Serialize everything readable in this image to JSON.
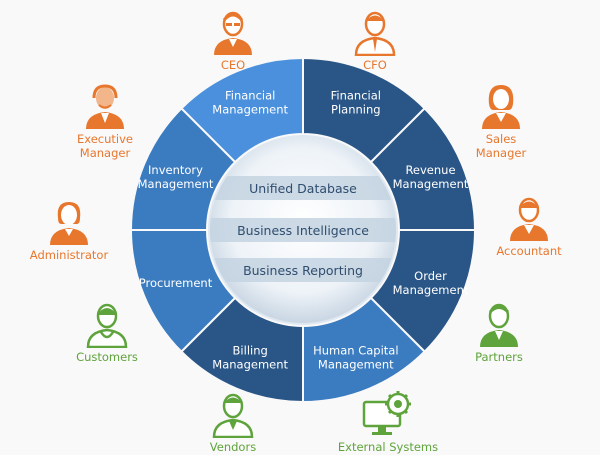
{
  "diagram": {
    "segments": [
      {
        "id": "financial-management",
        "lines": [
          "Financial",
          "Management"
        ]
      },
      {
        "id": "financial-planning",
        "lines": [
          "Financial",
          "Planning"
        ]
      },
      {
        "id": "revenue-management",
        "lines": [
          "Revenue",
          "Management"
        ]
      },
      {
        "id": "order-management",
        "lines": [
          "Order",
          "Management"
        ]
      },
      {
        "id": "human-capital-management",
        "lines": [
          "Human Capital",
          "Management"
        ]
      },
      {
        "id": "billing-management",
        "lines": [
          "Billing",
          "Management"
        ]
      },
      {
        "id": "procurement",
        "lines": [
          "Procurement"
        ]
      },
      {
        "id": "inventory-management",
        "lines": [
          "Inventory",
          "Management"
        ]
      }
    ],
    "core": {
      "bands": [
        "Unified Database",
        "Business Intelligence",
        "Business Reporting"
      ]
    },
    "roles": {
      "ceo": "CEO",
      "cfo": "CFO",
      "executive_manager": "Executive\nManager",
      "sales_manager": "Sales\nManager",
      "administrator": "Administrator",
      "accountant": "Accountant",
      "customers": "Customers",
      "partners": "Partners",
      "vendors": "Vendors",
      "external_systems": "External Systems"
    },
    "colors": {
      "orange": "#e8772e",
      "green": "#5fa33c",
      "ring_dark": "#2a5687",
      "ring_light": "#3b7bc0",
      "ring_highlight": "#4a90dc"
    }
  }
}
